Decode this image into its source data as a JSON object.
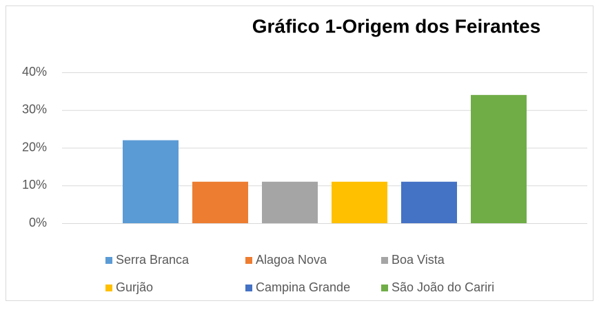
{
  "chart_data": {
    "type": "bar",
    "title": "Gráfico 1-Origem dos Feirantes",
    "series": [
      {
        "name": "Serra Branca",
        "color": "#5b9bd5",
        "values": [
          22
        ]
      },
      {
        "name": "Alagoa Nova",
        "color": "#ed7d31",
        "values": [
          11
        ]
      },
      {
        "name": "Boa Vista",
        "color": "#a5a5a5",
        "values": [
          11
        ]
      },
      {
        "name": "Gurjão",
        "color": "#ffc000",
        "values": [
          11
        ]
      },
      {
        "name": "Campina Grande",
        "color": "#4472c4",
        "values": [
          11
        ]
      },
      {
        "name": "São João do Cariri",
        "color": "#70ad47",
        "values": [
          34
        ]
      }
    ],
    "ylim": [
      0,
      40
    ],
    "yticks": [
      {
        "value": 0,
        "label": "0%"
      },
      {
        "value": 10,
        "label": "10%"
      },
      {
        "value": 20,
        "label": "20%"
      },
      {
        "value": 30,
        "label": "30%"
      },
      {
        "value": 40,
        "label": "40%"
      }
    ],
    "grid": true,
    "legend": "bottom"
  }
}
